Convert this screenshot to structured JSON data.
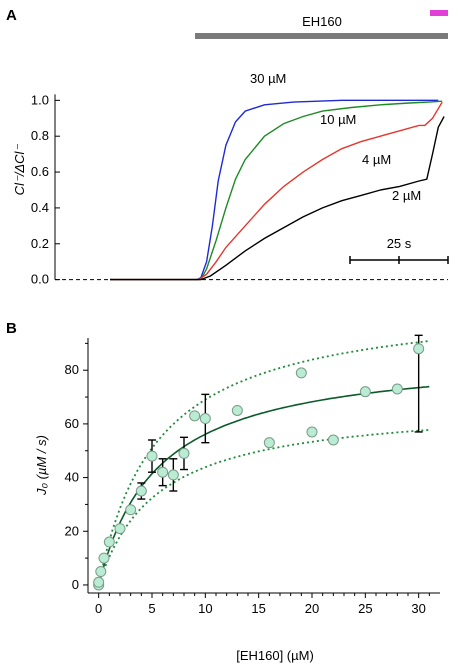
{
  "chart_data": [
    {
      "panel": "A",
      "type": "line",
      "drug_bar_label": "EH160",
      "ylabel": "Cl⁻/ΔCl⁻",
      "yticks": [
        "0.0",
        "0.2",
        "0.4",
        "0.6",
        "0.8",
        "1.0"
      ],
      "ylim": [
        -0.03,
        1.08
      ],
      "xlim": [
        0,
        175
      ],
      "scale_bar_label": "25 s",
      "scale_bar_seconds": 25,
      "series": [
        {
          "name": "30 µM",
          "color": "#1f2ad6",
          "points": [
            [
              0,
              0
            ],
            [
              40,
              0
            ],
            [
              45,
              0
            ],
            [
              47,
              0.01
            ],
            [
              50,
              0.1
            ],
            [
              53,
              0.3
            ],
            [
              56,
              0.55
            ],
            [
              60,
              0.75
            ],
            [
              65,
              0.88
            ],
            [
              70,
              0.94
            ],
            [
              80,
              0.975
            ],
            [
              95,
              0.99
            ],
            [
              120,
              1.0
            ],
            [
              150,
              1.0
            ],
            [
              170,
              1.0
            ]
          ]
        },
        {
          "name": "10 µM",
          "color": "#1e8a26",
          "points": [
            [
              0,
              0
            ],
            [
              45,
              0
            ],
            [
              47,
              0.0
            ],
            [
              50,
              0.06
            ],
            [
              55,
              0.22
            ],
            [
              60,
              0.4
            ],
            [
              65,
              0.56
            ],
            [
              70,
              0.67
            ],
            [
              80,
              0.8
            ],
            [
              90,
              0.87
            ],
            [
              100,
              0.91
            ],
            [
              110,
              0.94
            ],
            [
              125,
              0.96
            ],
            [
              140,
              0.975
            ],
            [
              155,
              0.985
            ],
            [
              165,
              0.99
            ],
            [
              172,
              0.995
            ]
          ]
        },
        {
          "name": "4 µM",
          "color": "#e2382f",
          "points": [
            [
              0,
              0
            ],
            [
              46,
              0
            ],
            [
              50,
              0.03
            ],
            [
              55,
              0.1
            ],
            [
              60,
              0.18
            ],
            [
              70,
              0.3
            ],
            [
              80,
              0.42
            ],
            [
              90,
              0.52
            ],
            [
              100,
              0.6
            ],
            [
              110,
              0.67
            ],
            [
              120,
              0.73
            ],
            [
              130,
              0.77
            ],
            [
              140,
              0.8
            ],
            [
              150,
              0.83
            ],
            [
              160,
              0.86
            ],
            [
              163,
              0.86
            ],
            [
              167,
              0.9
            ],
            [
              172,
              0.99
            ]
          ]
        },
        {
          "name": "2 µM",
          "color": "#000000",
          "points": [
            [
              0,
              0
            ],
            [
              47,
              0
            ],
            [
              52,
              0.02
            ],
            [
              60,
              0.08
            ],
            [
              70,
              0.16
            ],
            [
              80,
              0.23
            ],
            [
              90,
              0.29
            ],
            [
              100,
              0.35
            ],
            [
              110,
              0.4
            ],
            [
              120,
              0.44
            ],
            [
              130,
              0.47
            ],
            [
              140,
              0.5
            ],
            [
              150,
              0.52
            ],
            [
              160,
              0.55
            ],
            [
              164,
              0.56
            ],
            [
              167,
              0.7
            ],
            [
              170,
              0.85
            ],
            [
              173,
              0.91
            ]
          ]
        }
      ]
    },
    {
      "panel": "B",
      "type": "scatter",
      "xlabel": "[EH160]  (µM)",
      "ylabel": "J₀  (µM / s)",
      "xticks": [
        "0",
        "5",
        "10",
        "15",
        "20",
        "25",
        "30"
      ],
      "yticks": [
        "0",
        "20",
        "40",
        "60",
        "80"
      ],
      "xlim": [
        -1,
        32
      ],
      "ylim": [
        -3,
        92
      ],
      "points": [
        {
          "x": 0,
          "y": 0
        },
        {
          "x": 0,
          "y": 1
        },
        {
          "x": 0.2,
          "y": 5
        },
        {
          "x": 0.5,
          "y": 10
        },
        {
          "x": 1,
          "y": 16
        },
        {
          "x": 2,
          "y": 21
        },
        {
          "x": 3,
          "y": 28
        },
        {
          "x": 4,
          "y": 35,
          "err": 3
        },
        {
          "x": 5,
          "y": 48,
          "err": 6
        },
        {
          "x": 6,
          "y": 42,
          "err": 5
        },
        {
          "x": 7,
          "y": 41,
          "err": 6
        },
        {
          "x": 8,
          "y": 49,
          "err": 6
        },
        {
          "x": 9,
          "y": 63
        },
        {
          "x": 10,
          "y": 62,
          "err": 9
        },
        {
          "x": 13,
          "y": 65
        },
        {
          "x": 16,
          "y": 53
        },
        {
          "x": 19,
          "y": 79
        },
        {
          "x": 20,
          "y": 57
        },
        {
          "x": 22,
          "y": 54
        },
        {
          "x": 25,
          "y": 72
        },
        {
          "x": 28,
          "y": 73
        },
        {
          "x": 30,
          "y": 88,
          "err_lo": 31,
          "err_hi": 5
        }
      ],
      "fit": {
        "color": "#0b5a2a",
        "Jmax": 87,
        "K": 5.5
      },
      "bounds": {
        "color": "#1e8a3a",
        "upper": {
          "Jmax": 107,
          "K": 5.5
        },
        "lower": {
          "Jmax": 68,
          "K": 5.5
        }
      }
    }
  ]
}
